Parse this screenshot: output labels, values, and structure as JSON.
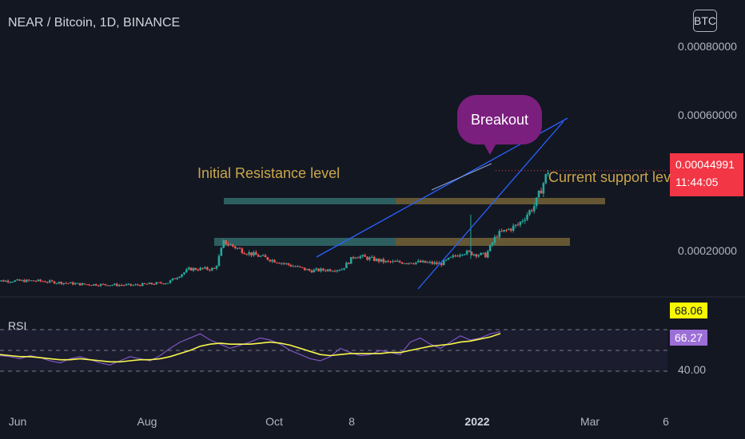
{
  "header": {
    "title": "NEAR / Bitcoin, 1D, BINANCE",
    "currency_button": "BTC"
  },
  "price_axis": {
    "ticks": [
      "0.00080000",
      "0.00060000",
      "0.00020000"
    ]
  },
  "current_price": {
    "value": "0.00044991",
    "countdown": "11:44:05"
  },
  "annotations": {
    "breakout": "Breakout",
    "initial_resistance": "Initial Resistance level",
    "current_support": "Current support lev"
  },
  "rsi": {
    "label": "RSI",
    "rsi_value": "68.06",
    "ma_value": "66.27",
    "tick": "40.00"
  },
  "time_axis": {
    "ticks": [
      "Jun",
      "Aug",
      "Oct",
      "8",
      "2022",
      "Mar",
      "6"
    ]
  },
  "colors": {
    "background": "#131722",
    "up": "#26a69a",
    "down": "#ef5350",
    "trendline": "#2962ff",
    "rsi_line": "#7e57c2",
    "rsi_ma": "#f7f74c",
    "price_badge": "#f23645"
  },
  "chart_data": [
    {
      "type": "candlestick",
      "title": "NEAR / Bitcoin, 1D, BINANCE",
      "x_ticks": [
        "Jun",
        "Aug",
        "Oct",
        "8",
        "2022",
        "Mar",
        "6"
      ],
      "y_ticks": [
        0.0002,
        0.0006,
        0.0008
      ],
      "close_path": [
        {
          "date": "2021-05-20",
          "close": 0.000125
        },
        {
          "date": "2021-06-10",
          "close": 0.000125
        },
        {
          "date": "2021-07-01",
          "close": 0.000115
        },
        {
          "date": "2021-07-25",
          "close": 0.000112
        },
        {
          "date": "2021-08-10",
          "close": 0.00012
        },
        {
          "date": "2021-08-20",
          "close": 0.00016
        },
        {
          "date": "2021-09-01",
          "close": 0.00016
        },
        {
          "date": "2021-09-05",
          "close": 0.00024
        },
        {
          "date": "2021-09-15",
          "close": 0.00021
        },
        {
          "date": "2021-10-01",
          "close": 0.00018
        },
        {
          "date": "2021-10-15",
          "close": 0.000155
        },
        {
          "date": "2021-10-30",
          "close": 0.00016
        },
        {
          "date": "2021-11-05",
          "close": 0.0002
        },
        {
          "date": "2021-11-20",
          "close": 0.00018
        },
        {
          "date": "2021-12-05",
          "close": 0.00018
        },
        {
          "date": "2021-12-15",
          "close": 0.000175
        },
        {
          "date": "2021-12-25",
          "close": 0.00021
        },
        {
          "date": "2022-01-05",
          "close": 0.0002
        },
        {
          "date": "2022-01-10",
          "close": 0.00026
        },
        {
          "date": "2022-01-20",
          "close": 0.00029
        },
        {
          "date": "2022-01-28",
          "close": 0.00035
        },
        {
          "date": "2022-02-03",
          "close": 0.00045
        }
      ],
      "last_price": 0.00044991,
      "zones": [
        {
          "name": "Initial Resistance level",
          "price": 0.00036
        },
        {
          "name": "Current support level",
          "price": 0.00024
        }
      ]
    },
    {
      "type": "line",
      "title": "RSI",
      "series": [
        {
          "values": [
            45,
            44,
            42,
            45,
            43,
            40,
            38,
            42,
            44,
            41,
            38,
            36,
            40,
            44,
            42,
            40,
            45,
            52,
            58,
            62,
            66,
            60,
            56,
            52,
            55,
            58,
            62,
            60,
            56,
            50,
            46,
            42,
            40,
            44,
            52,
            48,
            45,
            46,
            50,
            48,
            46,
            58,
            62,
            56,
            52,
            58,
            64,
            60,
            62,
            66,
            68
          ]
        },
        {
          "values": [
            46,
            45,
            44,
            44,
            43,
            42,
            41,
            41,
            42,
            41,
            40,
            39,
            39,
            40,
            41,
            41,
            42,
            44,
            47,
            50,
            54,
            56,
            57,
            56,
            56,
            56,
            57,
            58,
            57,
            55,
            52,
            49,
            46,
            45,
            46,
            47,
            47,
            47,
            47,
            48,
            48,
            50,
            52,
            54,
            55,
            56,
            58,
            59,
            61,
            63,
            66.27
          ]
        }
      ],
      "ylim": [
        30,
        80
      ],
      "levels": [
        70,
        50,
        30
      ]
    }
  ]
}
